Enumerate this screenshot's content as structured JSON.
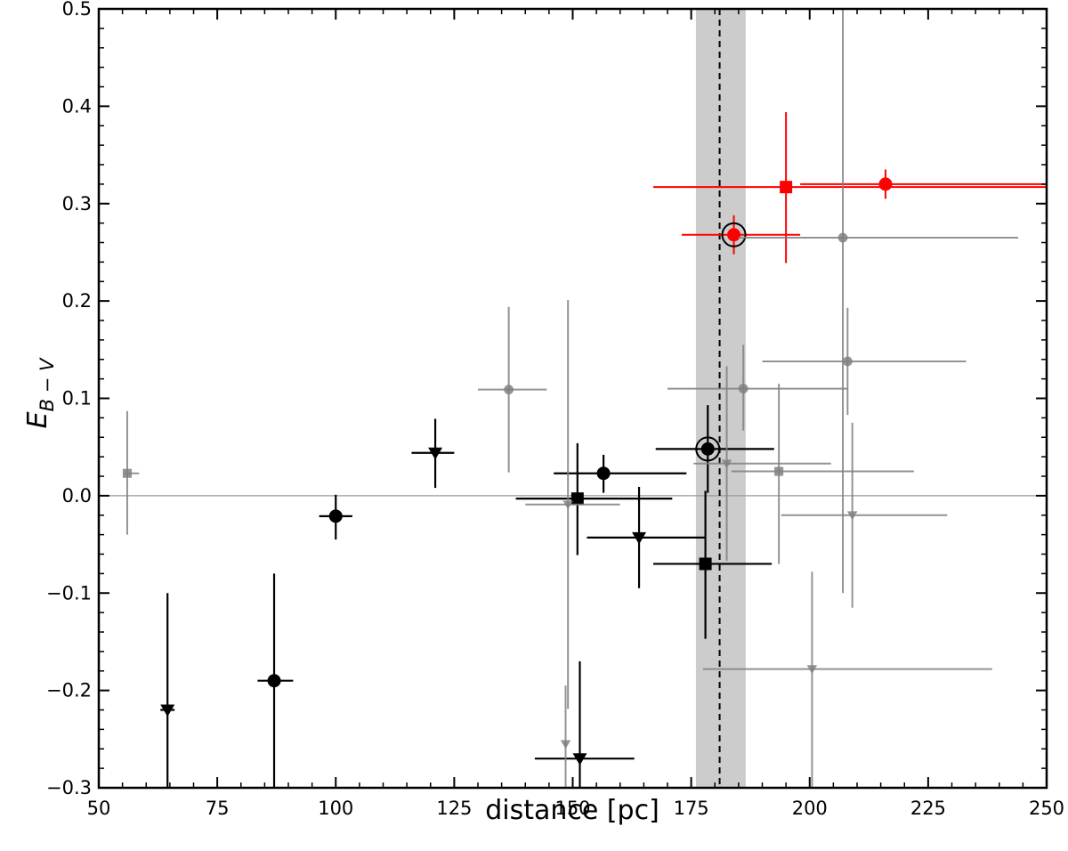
{
  "chart_data": {
    "type": "scatter",
    "xlabel": "distance [pc]",
    "ylabel_main": "E",
    "ylabel_sub": "B − V",
    "xlim": [
      50,
      250
    ],
    "ylim": [
      -0.3,
      0.5
    ],
    "xticks": [
      50,
      75,
      100,
      125,
      150,
      175,
      200,
      225,
      250
    ],
    "xtick_labels": [
      "50",
      "75",
      "100",
      "125",
      "150",
      "175",
      "200",
      "225",
      "250"
    ],
    "yticks": [
      -0.3,
      -0.2,
      -0.1,
      0.0,
      0.1,
      0.2,
      0.3,
      0.4,
      0.5
    ],
    "ytick_labels": [
      "−0.3",
      "−0.2",
      "−0.1",
      "0.0",
      "0.1",
      "0.2",
      "0.3",
      "0.4",
      "0.5"
    ],
    "grid": false,
    "reference_line_y": 0.0,
    "vertical_line_x": 181,
    "shaded_band_x": [
      176,
      186.5
    ],
    "colors": {
      "black": "#000000",
      "red": "#ff0000",
      "gray": "#808080",
      "band": "#cccccc",
      "zero_line": "#999999"
    },
    "series": [
      {
        "group": "black",
        "points": [
          {
            "marker": "triangle",
            "x": 64.5,
            "y": -0.22,
            "xerr": [
              1.5,
              1.5
            ],
            "yerr": [
              0.12,
              0.12
            ]
          },
          {
            "marker": "circle",
            "x": 87,
            "y": -0.19,
            "xerr": [
              3.5,
              4
            ],
            "yerr": [
              0.11,
              0.11
            ]
          },
          {
            "marker": "circle",
            "x": 100,
            "y": -0.021,
            "xerr": [
              3.5,
              3.5
            ],
            "yerr": [
              0.024,
              0.022
            ]
          },
          {
            "marker": "triangle",
            "x": 121,
            "y": 0.044,
            "xerr": [
              5,
              4
            ],
            "yerr": [
              0.036,
              0.035
            ]
          },
          {
            "marker": "circle",
            "x": 156.5,
            "y": 0.023,
            "xerr": [
              10.5,
              17.5
            ],
            "yerr": [
              0.02,
              0.019
            ]
          },
          {
            "marker": "square",
            "x": 151,
            "y": -0.003,
            "xerr": [
              13,
              20
            ],
            "yerr": [
              0.058,
              0.057
            ]
          },
          {
            "marker": "triangle",
            "x": 164,
            "y": -0.043,
            "xerr": [
              11,
              14
            ],
            "yerr": [
              0.052,
              0.052
            ]
          },
          {
            "marker": "triangle",
            "x": 151.5,
            "y": -0.27,
            "xerr": [
              9.5,
              11.5
            ],
            "yerr": [
              0.05,
              0.1
            ]
          },
          {
            "marker": "square",
            "x": 178,
            "y": -0.07,
            "xerr": [
              11,
              14
            ],
            "yerr": [
              0.077,
              0.075
            ]
          },
          {
            "marker": "circle",
            "x": 178.5,
            "y": 0.048,
            "xerr": [
              11,
              14
            ],
            "yerr": [
              0.045,
              0.045
            ],
            "ringed": true
          }
        ]
      },
      {
        "group": "red",
        "points": [
          {
            "marker": "circle",
            "x": 184,
            "y": 0.268,
            "xerr": [
              11,
              14
            ],
            "yerr": [
              0.02,
              0.02
            ],
            "ringed": true
          },
          {
            "marker": "square",
            "x": 195,
            "y": 0.317,
            "xerr": [
              28,
              60
            ],
            "yerr": [
              0.078,
              0.077
            ]
          },
          {
            "marker": "circle",
            "x": 216,
            "y": 0.32,
            "xerr": [
              18,
              40
            ],
            "yerr": [
              0.015,
              0.015
            ]
          }
        ]
      },
      {
        "group": "gray",
        "points": [
          {
            "marker": "square",
            "x": 56,
            "y": 0.023,
            "xerr": [
              0.5,
              2.5
            ],
            "yerr": [
              0.063,
              0.064
            ]
          },
          {
            "marker": "circle",
            "x": 136.5,
            "y": 0.109,
            "xerr": [
              6.5,
              8
            ],
            "yerr": [
              0.085,
              0.085
            ]
          },
          {
            "marker": "triangle",
            "x": 149,
            "y": -0.009,
            "xerr": [
              9,
              11
            ],
            "yerr": [
              0.21,
              0.21
            ]
          },
          {
            "marker": "triangle",
            "x": 148.5,
            "y": -0.255,
            "xerr": [
              0.3,
              0.3
            ],
            "yerr": [
              0.06,
              0.06
            ]
          },
          {
            "marker": "circle",
            "x": 186,
            "y": 0.11,
            "xerr": [
              16,
              22
            ],
            "yerr": [
              0.043,
              0.045
            ]
          },
          {
            "marker": "triangle",
            "x": 182.5,
            "y": 0.033,
            "xerr": [
              7,
              22
            ],
            "yerr": [
              0.1,
              0.1
            ]
          },
          {
            "marker": "square",
            "x": 193.5,
            "y": 0.025,
            "xerr": [
              10,
              28.5
            ],
            "yerr": [
              0.095,
              0.09
            ]
          },
          {
            "marker": "circle",
            "x": 207,
            "y": 0.265,
            "xerr": [
              22,
              37
            ],
            "yerr": [
              0.365,
              0.365
            ]
          },
          {
            "marker": "circle",
            "x": 208,
            "y": 0.138,
            "xerr": [
              18,
              25
            ],
            "yerr": [
              0.055,
              0.055
            ]
          },
          {
            "marker": "triangle",
            "x": 209,
            "y": -0.02,
            "xerr": [
              15,
              20
            ],
            "yerr": [
              0.095,
              0.095
            ]
          },
          {
            "marker": "triangle",
            "x": 200.5,
            "y": -0.178,
            "xerr": [
              23,
              38
            ],
            "yerr": [
              0.32,
              0.1
            ]
          }
        ]
      }
    ]
  }
}
